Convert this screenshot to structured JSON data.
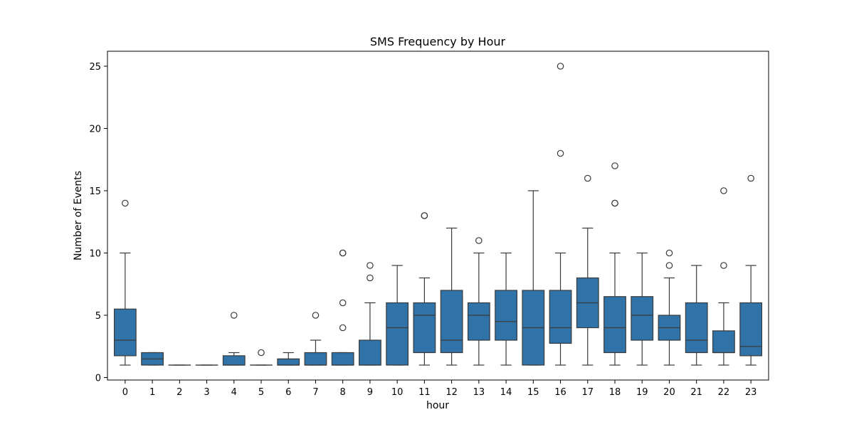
{
  "chart_data": {
    "type": "box",
    "title": "SMS Frequency by Hour",
    "xlabel": "hour",
    "ylabel": "Number of Events",
    "ylim": [
      -0.2,
      26.2
    ],
    "yticks": [
      0,
      5,
      10,
      15,
      20,
      25
    ],
    "grid": false,
    "color": "#2f73a9",
    "edge_color": "#3a3a3a",
    "categories": [
      "0",
      "1",
      "2",
      "3",
      "4",
      "5",
      "6",
      "7",
      "8",
      "9",
      "10",
      "11",
      "12",
      "13",
      "14",
      "15",
      "16",
      "17",
      "18",
      "19",
      "20",
      "21",
      "22",
      "23"
    ],
    "boxes": [
      {
        "q1": 1.75,
        "median": 3,
        "q3": 5.5,
        "whislo": 1,
        "whishi": 10,
        "fliers": [
          14
        ]
      },
      {
        "q1": 1,
        "median": 1.5,
        "q3": 2,
        "whislo": 1,
        "whishi": 2,
        "fliers": []
      },
      {
        "q1": 1,
        "median": 1,
        "q3": 1,
        "whislo": 1,
        "whishi": 1,
        "fliers": []
      },
      {
        "q1": 1,
        "median": 1,
        "q3": 1,
        "whislo": 1,
        "whishi": 1,
        "fliers": []
      },
      {
        "q1": 1,
        "median": 1,
        "q3": 1.75,
        "whislo": 1,
        "whishi": 2,
        "fliers": [
          5
        ]
      },
      {
        "q1": 1,
        "median": 1,
        "q3": 1,
        "whislo": 1,
        "whishi": 1,
        "fliers": [
          2
        ]
      },
      {
        "q1": 1,
        "median": 1,
        "q3": 1.5,
        "whislo": 1,
        "whishi": 2,
        "fliers": []
      },
      {
        "q1": 1,
        "median": 1,
        "q3": 2,
        "whislo": 1,
        "whishi": 3,
        "fliers": [
          5
        ]
      },
      {
        "q1": 1,
        "median": 1,
        "q3": 2,
        "whislo": 1,
        "whishi": 2,
        "fliers": [
          4,
          6,
          10,
          10
        ]
      },
      {
        "q1": 1,
        "median": 1,
        "q3": 3,
        "whislo": 1,
        "whishi": 6,
        "fliers": [
          8,
          9
        ]
      },
      {
        "q1": 1,
        "median": 4,
        "q3": 6,
        "whislo": 1,
        "whishi": 9,
        "fliers": []
      },
      {
        "q1": 2,
        "median": 5,
        "q3": 6,
        "whislo": 1,
        "whishi": 8,
        "fliers": [
          13,
          13
        ]
      },
      {
        "q1": 2,
        "median": 3,
        "q3": 7,
        "whislo": 1,
        "whishi": 12,
        "fliers": []
      },
      {
        "q1": 3,
        "median": 5,
        "q3": 6,
        "whislo": 1,
        "whishi": 10,
        "fliers": [
          11
        ]
      },
      {
        "q1": 3,
        "median": 4.5,
        "q3": 7,
        "whislo": 1,
        "whishi": 10,
        "fliers": []
      },
      {
        "q1": 1,
        "median": 4,
        "q3": 7,
        "whislo": 1,
        "whishi": 15,
        "fliers": []
      },
      {
        "q1": 2.75,
        "median": 4,
        "q3": 7,
        "whislo": 1,
        "whishi": 10,
        "fliers": [
          18,
          25
        ]
      },
      {
        "q1": 4,
        "median": 6,
        "q3": 8,
        "whislo": 1,
        "whishi": 12,
        "fliers": [
          16
        ]
      },
      {
        "q1": 2,
        "median": 4,
        "q3": 6.5,
        "whislo": 1,
        "whishi": 10,
        "fliers": [
          14,
          14,
          17
        ]
      },
      {
        "q1": 3,
        "median": 5,
        "q3": 6.5,
        "whislo": 1,
        "whishi": 10,
        "fliers": []
      },
      {
        "q1": 3,
        "median": 4,
        "q3": 5,
        "whislo": 1,
        "whishi": 8,
        "fliers": [
          9,
          10
        ]
      },
      {
        "q1": 2,
        "median": 3,
        "q3": 6,
        "whislo": 1,
        "whishi": 9,
        "fliers": []
      },
      {
        "q1": 2,
        "median": 2,
        "q3": 3.75,
        "whislo": 1,
        "whishi": 6,
        "fliers": [
          9,
          15
        ]
      },
      {
        "q1": 1.75,
        "median": 2.5,
        "q3": 6,
        "whislo": 1,
        "whishi": 9,
        "fliers": [
          16
        ]
      }
    ]
  }
}
